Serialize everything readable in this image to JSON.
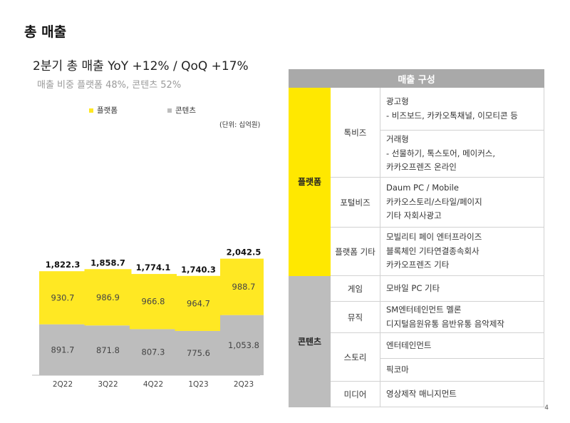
{
  "page": {
    "title": "총 매출",
    "page_number": "4"
  },
  "chart_header": {
    "title": "2분기 총 매출  YoY +12% / QoQ +17%",
    "share": "매출 비중    플랫폼 48%, 콘텐츠 52%",
    "unit": "(단위: 십억원)"
  },
  "chart_data": {
    "type": "bar",
    "stacked": true,
    "categories": [
      "2Q22",
      "3Q22",
      "4Q22",
      "1Q23",
      "2Q23"
    ],
    "series": [
      {
        "name": "콘텐츠",
        "color": "#bdbdbd",
        "values": [
          891.7,
          871.8,
          807.3,
          775.6,
          1053.8
        ],
        "labels": [
          "891.7",
          "871.8",
          "807.3",
          "775.6",
          "1,053.8"
        ]
      },
      {
        "name": "플랫폼",
        "color": "#ffe823",
        "values": [
          930.7,
          986.9,
          966.8,
          964.7,
          988.7
        ],
        "labels": [
          "930.7",
          "986.9",
          "966.8",
          "964.7",
          "988.7"
        ]
      }
    ],
    "totals": [
      1822.3,
      1858.7,
      1774.1,
      1740.3,
      2042.5
    ],
    "total_labels": [
      "1,822.3",
      "1,858.7",
      "1,774.1",
      "1,740.3",
      "2,042.5"
    ],
    "legend": [
      "플랫폼",
      "콘텐츠"
    ],
    "legend_position": "top-left",
    "grid": false,
    "ylim": [
      0,
      2400
    ]
  },
  "table": {
    "header": "매출 구성",
    "groups": [
      {
        "name": "플랫폼",
        "color": "#ffe800",
        "rows": [
          {
            "sub": "톡비즈",
            "blocks": [
              [
                "광고형",
                "- 비즈보드, 카카오톡채널, 이모티콘 등"
              ],
              [
                "거래형",
                "- 선물하기, 톡스토어, 메이커스,",
                "카카오프렌즈 온라인"
              ]
            ]
          },
          {
            "sub": "포털비즈",
            "blocks": [
              [
                "Daum PC / Mobile",
                "카카오스토리/스타일/페이지",
                "기타 자회사광고"
              ]
            ]
          },
          {
            "sub": "플랫폼 기타",
            "blocks": [
              [
                "모빌리티    페이    엔터프라이즈",
                "블록체인    기타연결종속회사",
                "카카오프렌즈 기타"
              ]
            ]
          }
        ]
      },
      {
        "name": "콘텐츠",
        "color": "#bdbdbd",
        "rows": [
          {
            "sub": "게임",
            "blocks": [
              [
                "모바일     PC      기타"
              ]
            ]
          },
          {
            "sub": "뮤직",
            "blocks": [
              [
                "SM엔터테인먼트     멜론",
                "디지털음원유통    음반유통    음악제작"
              ]
            ]
          },
          {
            "sub": "스토리",
            "blocks": [
              [
                "엔터테인먼트"
              ],
              [
                "픽코마"
              ]
            ]
          },
          {
            "sub": "미디어",
            "blocks": [
              [
                "영상제작    매니지먼트"
              ]
            ]
          }
        ]
      }
    ]
  }
}
